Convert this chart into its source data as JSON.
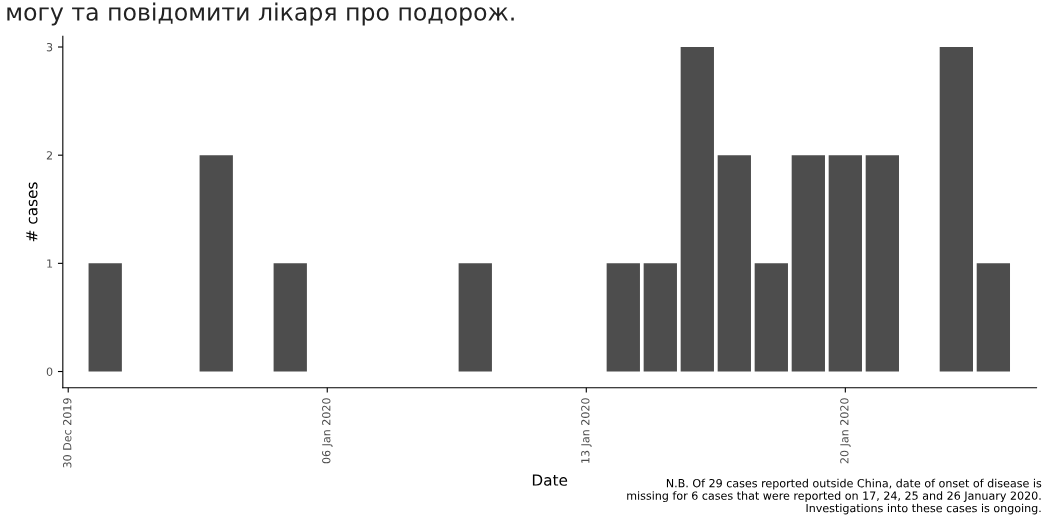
{
  "chart_data": {
    "type": "bar",
    "x": [
      "2019-12-31",
      "2020-01-03",
      "2020-01-05",
      "2020-01-10",
      "2020-01-14",
      "2020-01-15",
      "2020-01-16",
      "2020-01-17",
      "2020-01-18",
      "2020-01-19",
      "2020-01-20",
      "2020-01-21",
      "2020-01-23",
      "2020-01-24"
    ],
    "values": [
      1,
      2,
      1,
      1,
      1,
      1,
      3,
      2,
      1,
      2,
      2,
      2,
      3,
      1
    ],
    "color": "#4d4d4d",
    "xlabel": "Date",
    "ylabel": "# cases",
    "xlim": [
      "2019-12-29T20:30",
      "2020-01-25T04:00"
    ],
    "xticks": [
      {
        "value": "2019-12-30",
        "label": "30 Dec 2019"
      },
      {
        "value": "2020-01-06",
        "label": "06 Jan 2020"
      },
      {
        "value": "2020-01-13",
        "label": "13 Jan 2020"
      },
      {
        "value": "2020-01-20",
        "label": "20 Jan 2020"
      }
    ],
    "ylim": [
      -0.15,
      3.1
    ],
    "yticks": [
      0,
      1,
      2,
      3
    ],
    "grid": false,
    "legend": false,
    "annotations": [
      "могу та повідомити лікаря про подорож.",
      "N.B. Of 29 cases reported outside China, date of onset of disease is\nmissing for 6 cases that were reported on 17, 24, 25 and 26 January 2020.\nInvestigations into these cases is ongoing."
    ]
  }
}
